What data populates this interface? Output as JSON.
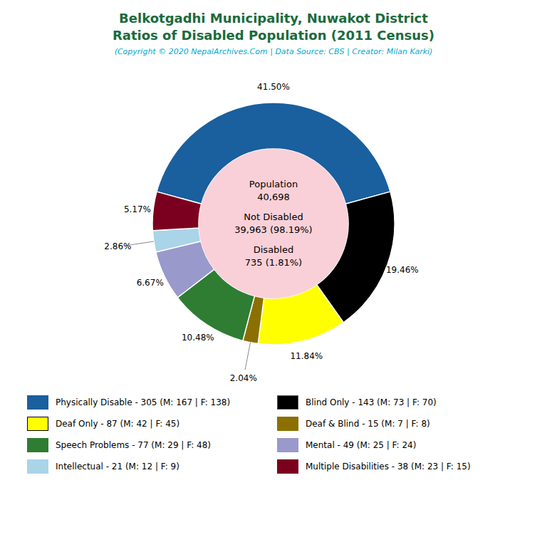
{
  "chart_data": {
    "type": "pie",
    "title": "Belkotgadhi Municipality, Nuwakot District\nRatios of Disabled Population (2011 Census)",
    "subtitle": "(Copyright © 2020 NepalArchives.Com | Data Source: CBS | Creator: Milan Karki)",
    "categories": [
      "Physically Disable - 305 (M: 167 | F: 138)",
      "Blind Only - 143 (M: 73 | F: 70)",
      "Deaf Only - 87 (M: 42 | F: 45)",
      "Deaf & Blind - 15 (M: 7 | F: 8)",
      "Speech Problems - 77 (M: 29 | F: 48)",
      "Mental - 49 (M: 25 | F: 24)",
      "Intellectual - 21 (M: 12 | F: 9)",
      "Multiple Disabilities - 38 (M: 23 | F: 15)"
    ],
    "values": [
      41.5,
      19.46,
      11.84,
      2.04,
      10.48,
      6.67,
      2.86,
      5.17
    ],
    "value_labels": [
      "41.50%",
      "19.46%",
      "11.84%",
      "2.04%",
      "10.48%",
      "6.67%",
      "2.86%",
      "5.17%"
    ],
    "colors": [
      "#1a5f9e",
      "#000000",
      "#ffff00",
      "#8b7000",
      "#2e7d32",
      "#9999cc",
      "#aad4e8",
      "#7b0020"
    ],
    "annotations": [
      "Population",
      "40,698",
      "Not Disabled",
      "39,963 (98.19%)",
      "Disabled",
      "735 (1.81%)"
    ],
    "legend": "bottom",
    "data_labels": true
  }
}
